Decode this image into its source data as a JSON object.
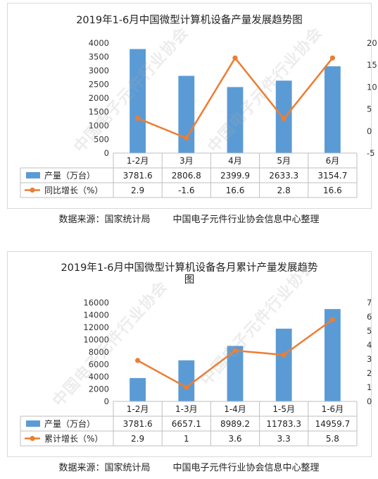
{
  "watermark": "中国电子元件行业协会",
  "charts": [
    {
      "title_lines": [
        "2019年1-6月中国微型计算机设备产量发展趋势图"
      ],
      "source": [
        "数据来源：国家统计局",
        "中国电子元件行业协会信息中心整理"
      ]
    },
    {
      "title_lines": [
        "2019年1-6月中国微型计算机设备各月累计产量发展趋势",
        "图"
      ],
      "source": [
        "数据来源：国家统计局",
        "中国电子元件行业协会信息中心整理"
      ]
    }
  ],
  "chart_data": [
    {
      "type": "bar",
      "title": "2019年1-6月中国微型计算机设备产量发展趋势图",
      "categories": [
        "1-2月",
        "3月",
        "4月",
        "5月",
        "6月"
      ],
      "series": [
        {
          "name": "产量（万台）",
          "kind": "bar",
          "axis": "left",
          "values": [
            3781.6,
            2806.8,
            2399.9,
            2633.3,
            3154.7
          ],
          "labels": [
            "3781.6",
            "2806.8",
            "2399.9",
            "2633.3",
            "3154.7"
          ],
          "color": "#5b9bd5"
        },
        {
          "name": "同比增长（%）",
          "kind": "line",
          "axis": "right",
          "values": [
            2.9,
            -1.6,
            16.6,
            2.8,
            16.6
          ],
          "labels": [
            "2.9",
            "-1.6",
            "16.6",
            "2.8",
            "16.6"
          ],
          "color": "#ed7d31"
        }
      ],
      "y_left": {
        "min": 0,
        "max": 4000,
        "ticks": [
          0,
          500,
          1000,
          1500,
          2000,
          2500,
          3000,
          3500,
          4000
        ]
      },
      "y_right": {
        "min": -5,
        "max": 20,
        "ticks": [
          -5,
          0,
          5,
          10,
          15,
          20
        ]
      },
      "grid": false,
      "legend": "data-table"
    },
    {
      "type": "bar",
      "title": "2019年1-6月中国微型计算机设备各月累计产量发展趋势图",
      "categories": [
        "1-2月",
        "1-3月",
        "1-4月",
        "1-5月",
        "1-6月"
      ],
      "series": [
        {
          "name": "产量（万台）",
          "kind": "bar",
          "axis": "left",
          "values": [
            3781.6,
            6657.1,
            8989.2,
            11783.3,
            14959.7
          ],
          "labels": [
            "3781.6",
            "6657.1",
            "8989.2",
            "11783.3",
            "14959.7"
          ],
          "color": "#5b9bd5"
        },
        {
          "name": "累计增长（%）",
          "kind": "line",
          "axis": "right",
          "values": [
            2.9,
            1,
            3.6,
            3.3,
            5.8
          ],
          "labels": [
            "2.9",
            "1",
            "3.6",
            "3.3",
            "5.8"
          ],
          "color": "#ed7d31"
        }
      ],
      "y_left": {
        "min": 0,
        "max": 16000,
        "ticks": [
          0,
          2000,
          4000,
          6000,
          8000,
          10000,
          12000,
          14000,
          16000
        ]
      },
      "y_right": {
        "min": 0,
        "max": 7,
        "ticks": [
          0,
          1,
          2,
          3,
          4,
          5,
          6,
          7
        ]
      },
      "grid": false,
      "legend": "data-table"
    }
  ]
}
